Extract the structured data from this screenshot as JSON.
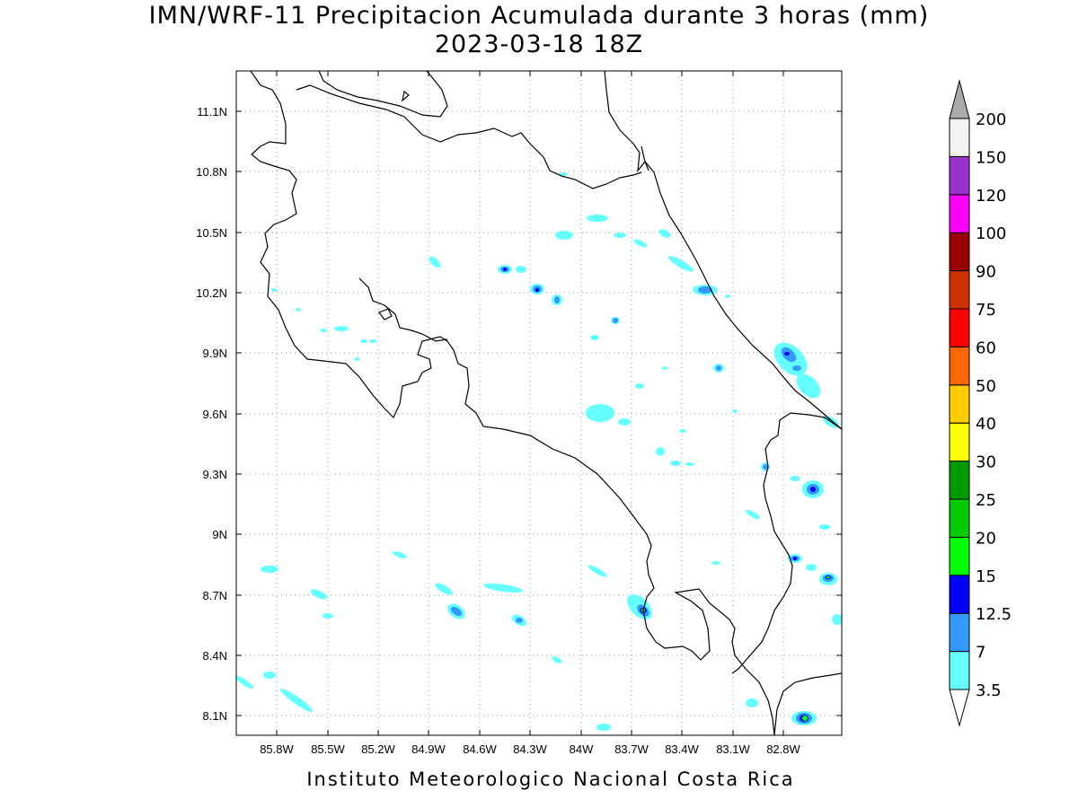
{
  "title": "IMN/WRF-11 Precipitacion Acumulada durante 3 horas (mm)",
  "subtitle": "2023-03-18 18Z",
  "credit": "Instituto Meteorologico Nacional Costa Rica",
  "x_ticks": [
    "85.8W",
    "85.5W",
    "85.2W",
    "84.9W",
    "84.6W",
    "84.3W",
    "84W",
    "83.7W",
    "83.4W",
    "83.1W",
    "82.8W"
  ],
  "y_ticks": [
    "11.1N",
    "10.8N",
    "10.5N",
    "10.2N",
    "9.9N",
    "9.6N",
    "9.3N",
    "9N",
    "8.7N",
    "8.4N",
    "8.1N"
  ],
  "colorbar": {
    "labels": [
      "3.5",
      "7",
      "12.5",
      "15",
      "20",
      "25",
      "30",
      "40",
      "50",
      "60",
      "75",
      "90",
      "100",
      "120",
      "150",
      "200"
    ],
    "colors": [
      "#ffffff",
      "#66ffff",
      "#3399ff",
      "#0000ff",
      "#00ff00",
      "#00cc00",
      "#009900",
      "#ffff00",
      "#ffcc00",
      "#ff6600",
      "#ff0000",
      "#cc3300",
      "#990000",
      "#ff00ff",
      "#9933cc",
      "#f2f2f2"
    ]
  },
  "map": {
    "extent": {
      "lon": [
        -86.05,
        -83.05
      ],
      "lat": [
        8.0,
        11.3
      ]
    }
  }
}
